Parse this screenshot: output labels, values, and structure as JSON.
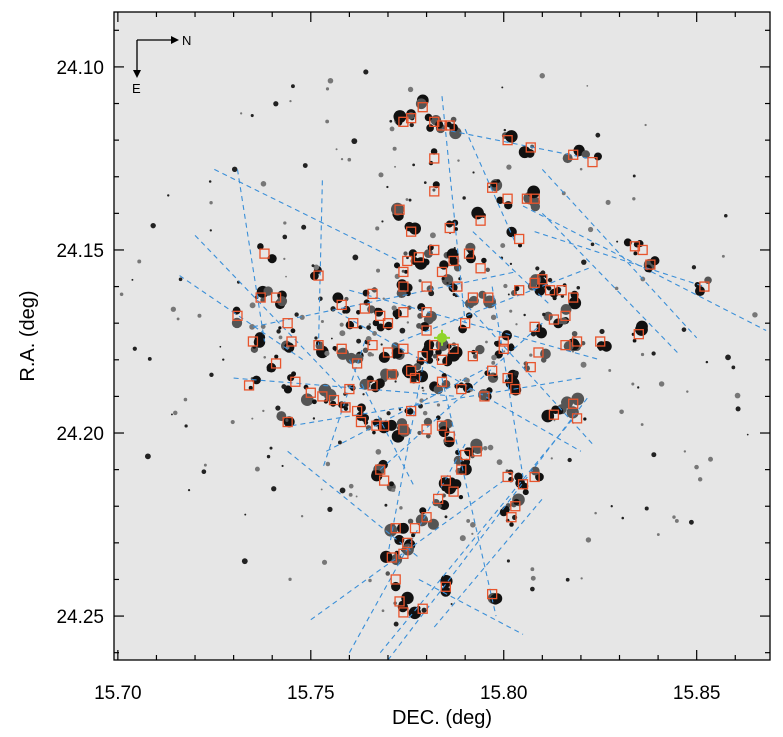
{
  "chart_data": {
    "type": "scatter",
    "xlabel": "DEC. (deg)",
    "ylabel": "R.A. (deg)",
    "xlim": [
      15.699,
      15.869
    ],
    "ylim": [
      24.262,
      24.085
    ],
    "y_axis_inverted": true,
    "xticks": [
      "15.70",
      "15.75",
      "15.80",
      "15.85"
    ],
    "yticks": [
      "24.10",
      "24.15",
      "24.20",
      "24.25"
    ],
    "xtick_values": [
      15.7,
      15.75,
      15.8,
      15.85
    ],
    "ytick_values": [
      24.1,
      24.15,
      24.2,
      24.25
    ],
    "grid": false,
    "background": "galaxy image (light grey with dark star-forming clumps)",
    "compass": {
      "north_label": "N",
      "east_label": "E"
    },
    "colors": {
      "markers": "#e8542c",
      "lines": "#3a8fd8",
      "center_marker": "#8fd42a",
      "background": "#e6e6e6"
    },
    "center_marker": {
      "x": 15.784,
      "y": 24.174
    },
    "clusters": [
      [
        15.779,
        24.111
      ],
      [
        15.776,
        24.114
      ],
      [
        15.774,
        24.115
      ],
      [
        15.782,
        24.115
      ],
      [
        15.784,
        24.116
      ],
      [
        15.786,
        24.116
      ],
      [
        15.801,
        24.12
      ],
      [
        15.807,
        24.122
      ],
      [
        15.818,
        24.124
      ],
      [
        15.823,
        24.126
      ],
      [
        15.782,
        24.125
      ],
      [
        15.782,
        24.134
      ],
      [
        15.797,
        24.133
      ],
      [
        15.801,
        24.136
      ],
      [
        15.806,
        24.136
      ],
      [
        15.808,
        24.136
      ],
      [
        15.773,
        24.139
      ],
      [
        15.794,
        24.142
      ],
      [
        15.776,
        24.145
      ],
      [
        15.786,
        24.144
      ],
      [
        15.804,
        24.147
      ],
      [
        15.775,
        24.153
      ],
      [
        15.778,
        24.152
      ],
      [
        15.782,
        24.15
      ],
      [
        15.791,
        24.151
      ],
      [
        15.787,
        24.153
      ],
      [
        15.738,
        24.151
      ],
      [
        15.752,
        24.157
      ],
      [
        15.774,
        24.156
      ],
      [
        15.784,
        24.156
      ],
      [
        15.794,
        24.155
      ],
      [
        15.834,
        24.149
      ],
      [
        15.836,
        24.15
      ],
      [
        15.838,
        24.154
      ],
      [
        15.852,
        24.16
      ],
      [
        15.81,
        24.158
      ],
      [
        15.774,
        24.16
      ],
      [
        15.766,
        24.162
      ],
      [
        15.78,
        24.16
      ],
      [
        15.788,
        24.16
      ],
      [
        15.792,
        24.163
      ],
      [
        15.796,
        24.163
      ],
      [
        15.804,
        24.161
      ],
      [
        15.808,
        24.159
      ],
      [
        15.812,
        24.161
      ],
      [
        15.815,
        24.161
      ],
      [
        15.818,
        24.163
      ],
      [
        15.737,
        24.163
      ],
      [
        15.741,
        24.163
      ],
      [
        15.758,
        24.165
      ],
      [
        15.764,
        24.166
      ],
      [
        15.768,
        24.168
      ],
      [
        15.774,
        24.167
      ],
      [
        15.78,
        24.167
      ],
      [
        15.79,
        24.17
      ],
      [
        15.813,
        24.169
      ],
      [
        15.816,
        24.168
      ],
      [
        15.731,
        24.168
      ],
      [
        15.744,
        24.17
      ],
      [
        15.761,
        24.17
      ],
      [
        15.77,
        24.17
      ],
      [
        15.78,
        24.172
      ],
      [
        15.782,
        24.176
      ],
      [
        15.787,
        24.177
      ],
      [
        15.792,
        24.179
      ],
      [
        15.8,
        24.175
      ],
      [
        15.808,
        24.171
      ],
      [
        15.819,
        24.175
      ],
      [
        15.825,
        24.175
      ],
      [
        15.835,
        24.173
      ],
      [
        15.735,
        24.175
      ],
      [
        15.745,
        24.175
      ],
      [
        15.752,
        24.176
      ],
      [
        15.758,
        24.177
      ],
      [
        15.766,
        24.176
      ],
      [
        15.77,
        24.178
      ],
      [
        15.774,
        24.177
      ],
      [
        15.779,
        24.179
      ],
      [
        15.784,
        24.18
      ],
      [
        15.8,
        24.177
      ],
      [
        15.809,
        24.178
      ],
      [
        15.816,
        24.176
      ],
      [
        15.741,
        24.181
      ],
      [
        15.762,
        24.181
      ],
      [
        15.771,
        24.184
      ],
      [
        15.776,
        24.183
      ],
      [
        15.784,
        24.186
      ],
      [
        15.797,
        24.183
      ],
      [
        15.801,
        24.185
      ],
      [
        15.807,
        24.182
      ],
      [
        15.746,
        24.186
      ],
      [
        15.734,
        24.187
      ],
      [
        15.75,
        24.189
      ],
      [
        15.753,
        24.19
      ],
      [
        15.756,
        24.191
      ],
      [
        15.76,
        24.188
      ],
      [
        15.766,
        24.187
      ],
      [
        15.777,
        24.185
      ],
      [
        15.789,
        24.188
      ],
      [
        15.795,
        24.19
      ],
      [
        15.803,
        24.188
      ],
      [
        15.818,
        24.192
      ],
      [
        15.759,
        24.193
      ],
      [
        15.762,
        24.194
      ],
      [
        15.776,
        24.194
      ],
      [
        15.813,
        24.195
      ],
      [
        15.819,
        24.196
      ],
      [
        15.78,
        24.199
      ],
      [
        15.744,
        24.197
      ],
      [
        15.763,
        24.197
      ],
      [
        15.767,
        24.198
      ],
      [
        15.769,
        24.198
      ],
      [
        15.774,
        24.199
      ],
      [
        15.784,
        24.198
      ],
      [
        15.786,
        24.201
      ],
      [
        15.793,
        24.205
      ],
      [
        15.79,
        24.206
      ],
      [
        15.789,
        24.21
      ],
      [
        15.785,
        24.213
      ],
      [
        15.783,
        24.218
      ],
      [
        15.78,
        24.223
      ],
      [
        15.777,
        24.226
      ],
      [
        15.772,
        24.226
      ],
      [
        15.775,
        24.23
      ],
      [
        15.774,
        24.233
      ],
      [
        15.771,
        24.234
      ],
      [
        15.768,
        24.21
      ],
      [
        15.769,
        24.213
      ],
      [
        15.801,
        24.212
      ],
      [
        15.805,
        24.214
      ],
      [
        15.803,
        24.22
      ],
      [
        15.802,
        24.223
      ],
      [
        15.808,
        24.212
      ],
      [
        15.797,
        24.244
      ],
      [
        15.785,
        24.242
      ],
      [
        15.779,
        24.248
      ],
      [
        15.772,
        24.24
      ],
      [
        15.773,
        24.246
      ],
      [
        15.774,
        24.249
      ],
      [
        15.787,
        24.216
      ]
    ],
    "lines": [
      [
        [
          15.784,
          24.108
        ],
        [
          15.79,
          24.17
        ]
      ],
      [
        [
          15.784,
          24.117
        ],
        [
          15.822,
          24.125
        ]
      ],
      [
        [
          15.79,
          24.117
        ],
        [
          15.803,
          24.148
        ]
      ],
      [
        [
          15.753,
          24.131
        ],
        [
          15.752,
          24.176
        ]
      ],
      [
        [
          15.731,
          24.128
        ],
        [
          15.738,
          24.175
        ]
      ],
      [
        [
          15.72,
          24.146
        ],
        [
          15.76,
          24.19
        ]
      ],
      [
        [
          15.716,
          24.157
        ],
        [
          15.748,
          24.18
        ]
      ],
      [
        [
          15.725,
          24.128
        ],
        [
          15.773,
          24.153
        ]
      ],
      [
        [
          15.805,
          24.138
        ],
        [
          15.868,
          24.172
        ]
      ],
      [
        [
          15.808,
          24.145
        ],
        [
          15.852,
          24.16
        ]
      ],
      [
        [
          15.81,
          24.14
        ],
        [
          15.845,
          24.178
        ]
      ],
      [
        [
          15.81,
          24.128
        ],
        [
          15.85,
          24.174
        ]
      ],
      [
        [
          15.73,
          24.185
        ],
        [
          15.788,
          24.19
        ]
      ],
      [
        [
          15.744,
          24.205
        ],
        [
          15.778,
          24.234
        ]
      ],
      [
        [
          15.754,
          24.205
        ],
        [
          15.796,
          24.182
        ]
      ],
      [
        [
          15.76,
          24.26
        ],
        [
          15.79,
          24.203
        ]
      ],
      [
        [
          15.782,
          24.253
        ],
        [
          15.81,
          24.218
        ]
      ],
      [
        [
          15.768,
          24.26
        ],
        [
          15.818,
          24.196
        ]
      ],
      [
        [
          15.75,
          24.251
        ],
        [
          15.8,
          24.213
        ]
      ],
      [
        [
          15.77,
          24.262
        ],
        [
          15.822,
          24.19
        ]
      ],
      [
        [
          15.735,
          24.171
        ],
        [
          15.803,
          24.156
        ]
      ],
      [
        [
          15.76,
          24.161
        ],
        [
          15.825,
          24.18
        ]
      ],
      [
        [
          15.745,
          24.198
        ],
        [
          15.82,
          24.185
        ]
      ],
      [
        [
          15.757,
          24.167
        ],
        [
          15.82,
          24.205
        ]
      ],
      [
        [
          15.768,
          24.21
        ],
        [
          15.81,
          24.17
        ]
      ],
      [
        [
          15.773,
          24.175
        ],
        [
          15.822,
          24.155
        ]
      ],
      [
        [
          15.786,
          24.16
        ],
        [
          15.823,
          24.203
        ]
      ],
      [
        [
          15.792,
          24.145
        ],
        [
          15.812,
          24.165
        ]
      ],
      [
        [
          15.779,
          24.182
        ],
        [
          15.77,
          24.233
        ]
      ],
      [
        [
          15.784,
          24.185
        ],
        [
          15.798,
          24.25
        ]
      ],
      [
        [
          15.797,
          24.16
        ],
        [
          15.805,
          24.212
        ]
      ],
      [
        [
          15.76,
          24.18
        ],
        [
          15.777,
          24.215
        ]
      ],
      [
        [
          15.764,
          24.175
        ],
        [
          15.753,
          24.21
        ]
      ],
      [
        [
          15.778,
          24.24
        ],
        [
          15.805,
          24.255
        ]
      ]
    ]
  }
}
